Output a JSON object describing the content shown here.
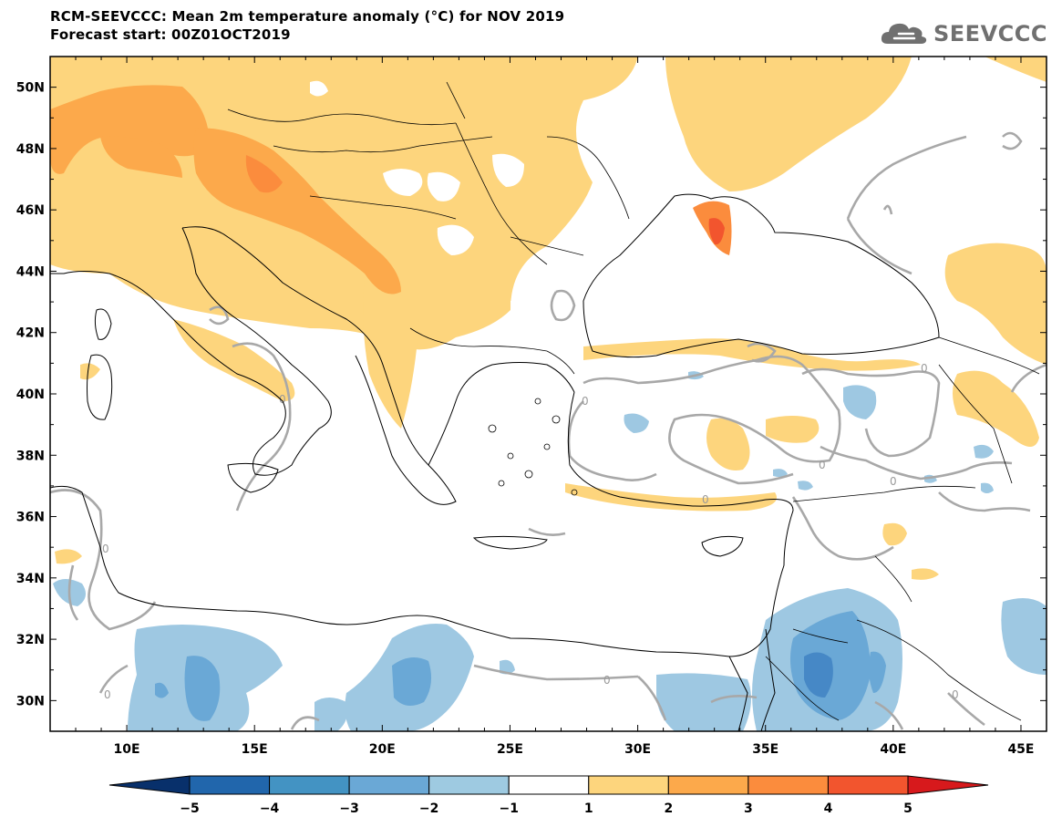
{
  "header": {
    "title_line1": "RCM-SEEVCCC: Mean 2m temperature anomaly (°C) for NOV 2019",
    "title_line2": "Forecast start: 00Z01OCT2019"
  },
  "logo": {
    "text": "SEEVCCC",
    "icon": "cloud-icon",
    "color": "#707070"
  },
  "map": {
    "lon_range": [
      7,
      46
    ],
    "lat_range": [
      29,
      51
    ],
    "lon_ticks": [
      "10E",
      "15E",
      "20E",
      "25E",
      "30E",
      "35E",
      "40E",
      "45E"
    ],
    "lat_ticks": [
      "50N",
      "48N",
      "46N",
      "44N",
      "42N",
      "40N",
      "38N",
      "36N",
      "34N",
      "32N",
      "30N"
    ],
    "contour_label": "0",
    "colors": {
      "warm1": "#fdd57d",
      "warm2": "#fca94b",
      "warm3": "#fb8c3d",
      "warm4": "#f2552e",
      "cool1": "#9ec8e2",
      "cool2": "#6aa8d6",
      "cool3": "#4688c6",
      "zero_contour": "#a8a8a8",
      "coast": "#000000"
    }
  },
  "colorbar": {
    "labels": [
      "−5",
      "−4",
      "−3",
      "−2",
      "−1",
      "1",
      "2",
      "3",
      "4",
      "5"
    ],
    "colors": [
      "#08306b",
      "#2166ac",
      "#4393c3",
      "#6aa8d6",
      "#9ecae1",
      "#ffffff",
      "#fdd57d",
      "#fca94b",
      "#fb8c3d",
      "#f2552e",
      "#d7191c"
    ]
  }
}
